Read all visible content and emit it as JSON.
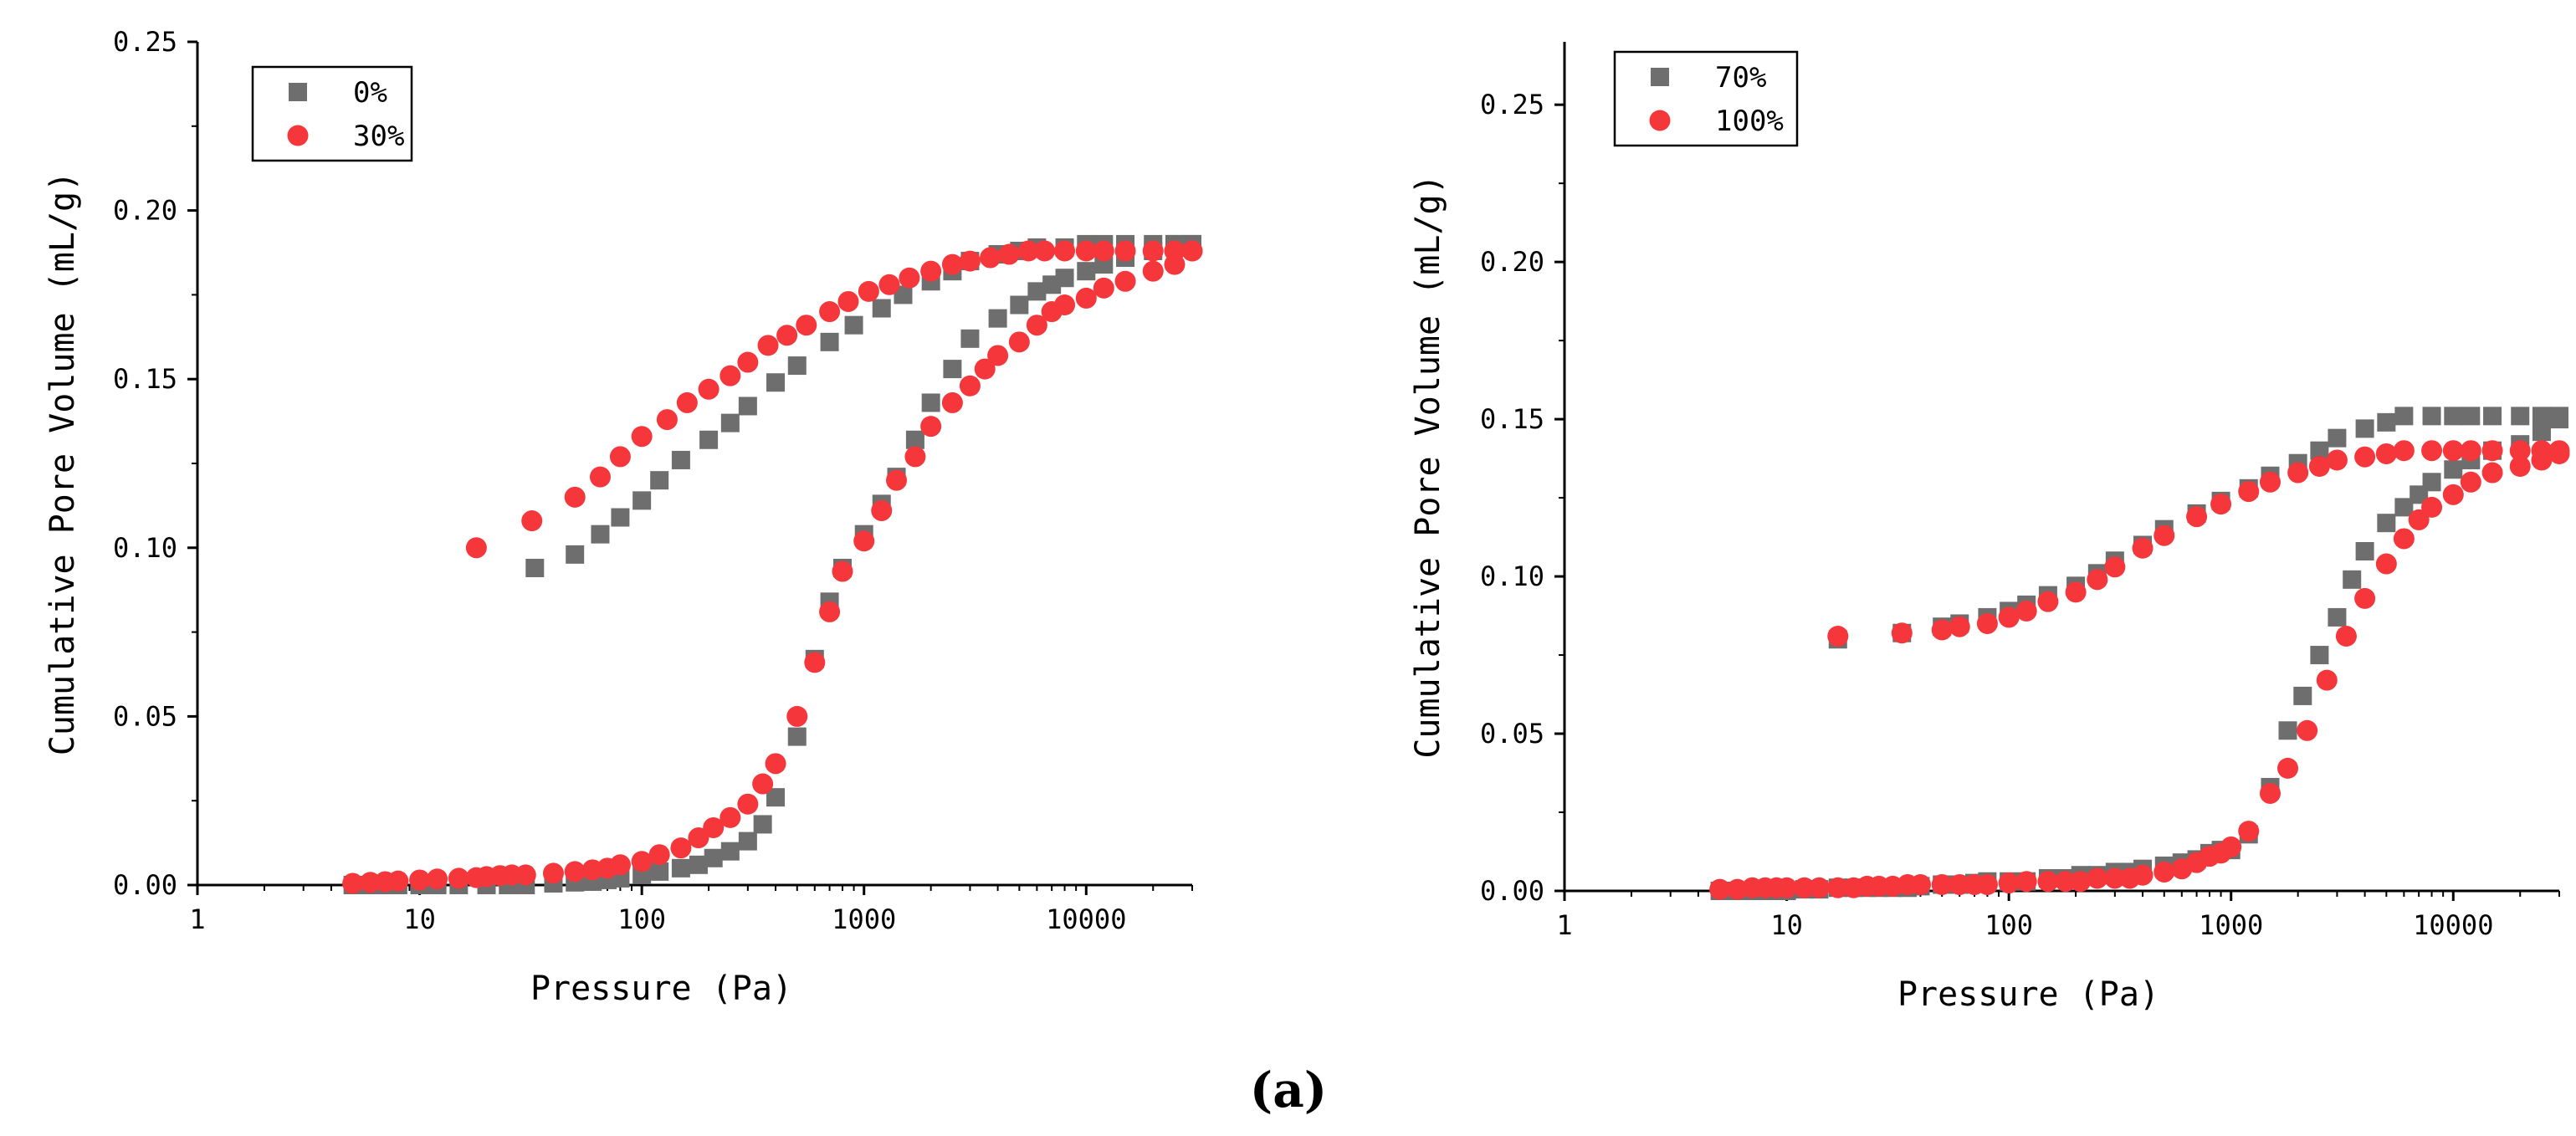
{
  "figure_caption": "(a)",
  "colors": {
    "square": "#6e6e6e",
    "circle": "#f5363b"
  },
  "chart_data": [
    {
      "type": "scatter",
      "xscale": "log",
      "xlim": [
        1,
        30000
      ],
      "ylim": [
        0,
        0.25
      ],
      "xlabel": "Pressure (Pa)",
      "ylabel": "Cumulative Pore Volume (mL/g)",
      "xticks": [
        1,
        10,
        100,
        1000,
        10000
      ],
      "xtick_labels": [
        "1",
        "10",
        "100",
        "1000",
        "10000"
      ],
      "yticks": [
        0,
        0.05,
        0.1,
        0.15,
        0.2,
        0.25
      ],
      "ytick_labels": [
        "0.00",
        "0.05",
        "0.10",
        "0.15",
        "0.20",
        "0.25"
      ],
      "legend_position": "top-left",
      "series": [
        {
          "name": "0%",
          "marker": "square",
          "intrusion": {
            "x": [
              5,
              6,
              7,
              8,
              10,
              12,
              15,
              20,
              25,
              30,
              40,
              50,
              60,
              70,
              80,
              100,
              120,
              150,
              180,
              210,
              250,
              300,
              350,
              400,
              500,
              600,
              700,
              800,
              1000,
              1200,
              1400,
              1700,
              2000,
              2500,
              3000,
              4000,
              5000,
              6000,
              7000,
              8000,
              10000,
              12000,
              15000,
              20000,
              25000,
              30000
            ],
            "y": [
              0.0,
              0.0,
              0.0,
              0.0,
              0.0,
              0.0,
              0.0,
              0.0,
              0.0,
              0.0,
              0.0005,
              0.0008,
              0.001,
              0.0015,
              0.002,
              0.003,
              0.004,
              0.005,
              0.006,
              0.008,
              0.01,
              0.013,
              0.018,
              0.026,
              0.044,
              0.067,
              0.084,
              0.094,
              0.104,
              0.113,
              0.121,
              0.132,
              0.143,
              0.153,
              0.162,
              0.168,
              0.172,
              0.176,
              0.178,
              0.18,
              0.182,
              0.184,
              0.186,
              0.188,
              0.19,
              0.19
            ]
          },
          "extrusion": {
            "x": [
              30000,
              25000,
              20000,
              15000,
              12000,
              10000,
              8000,
              6000,
              5000,
              4000,
              3000,
              2500,
              2000,
              1500,
              1200,
              900,
              700,
              500,
              400,
              300,
              250,
              200,
              150,
              120,
              100,
              80,
              65,
              50,
              33
            ],
            "y": [
              0.19,
              0.19,
              0.19,
              0.19,
              0.19,
              0.19,
              0.189,
              0.189,
              0.188,
              0.187,
              0.185,
              0.182,
              0.179,
              0.175,
              0.171,
              0.166,
              0.161,
              0.154,
              0.149,
              0.142,
              0.137,
              0.132,
              0.126,
              0.12,
              0.114,
              0.109,
              0.104,
              0.098,
              0.094
            ]
          }
        },
        {
          "name": "30%",
          "marker": "circle",
          "intrusion": {
            "x": [
              5,
              6,
              7,
              8,
              10,
              12,
              15,
              18,
              20,
              23,
              26,
              30,
              40,
              50,
              60,
              70,
              80,
              100,
              120,
              150,
              180,
              210,
              250,
              300,
              350,
              400,
              500,
              600,
              700,
              800,
              1000,
              1200,
              1400,
              1700,
              2000,
              2500,
              3000,
              3500,
              4000,
              5000,
              6000,
              7000,
              8000,
              10000,
              12000,
              15000,
              20000,
              25000,
              30000
            ],
            "y": [
              0.0005,
              0.0008,
              0.001,
              0.0012,
              0.0015,
              0.0018,
              0.002,
              0.0022,
              0.0025,
              0.0028,
              0.003,
              0.003,
              0.0035,
              0.004,
              0.0045,
              0.005,
              0.006,
              0.007,
              0.009,
              0.011,
              0.014,
              0.017,
              0.02,
              0.024,
              0.03,
              0.036,
              0.05,
              0.066,
              0.081,
              0.093,
              0.102,
              0.111,
              0.12,
              0.127,
              0.136,
              0.143,
              0.148,
              0.153,
              0.157,
              0.161,
              0.166,
              0.17,
              0.172,
              0.174,
              0.177,
              0.179,
              0.182,
              0.184,
              0.188
            ]
          },
          "extrusion": {
            "x": [
              30000,
              25000,
              20000,
              15000,
              12000,
              10000,
              8000,
              6500,
              5500,
              4500,
              3700,
              3000,
              2500,
              2000,
              1600,
              1300,
              1050,
              850,
              700,
              550,
              450,
              370,
              300,
              250,
              200,
              160,
              130,
              100,
              80,
              65,
              50,
              32,
              18
            ],
            "y": [
              0.188,
              0.188,
              0.188,
              0.188,
              0.188,
              0.188,
              0.188,
              0.188,
              0.188,
              0.187,
              0.186,
              0.185,
              0.184,
              0.182,
              0.18,
              0.178,
              0.176,
              0.173,
              0.17,
              0.166,
              0.163,
              0.16,
              0.155,
              0.151,
              0.147,
              0.143,
              0.138,
              0.133,
              0.127,
              0.121,
              0.115,
              0.108,
              0.1
            ]
          }
        }
      ]
    },
    {
      "type": "scatter",
      "xscale": "log",
      "xlim": [
        1,
        30000
      ],
      "ylim": [
        0,
        0.27
      ],
      "xlabel": "Pressure (Pa)",
      "ylabel": "Cumulative Pore Volume (mL/g)",
      "xticks": [
        1,
        10,
        100,
        1000,
        10000
      ],
      "xtick_labels": [
        "1",
        "10",
        "100",
        "1000",
        "10000"
      ],
      "yticks": [
        0,
        0.05,
        0.1,
        0.15,
        0.2,
        0.25
      ],
      "ytick_labels": [
        "0.00",
        "0.05",
        "0.10",
        "0.15",
        "0.20",
        "0.25"
      ],
      "legend_position": "top-left",
      "series": [
        {
          "name": "70%",
          "marker": "square",
          "intrusion": {
            "x": [
              5,
              6,
              7,
              8,
              9,
              10,
              12,
              14,
              17,
              20,
              23,
              26,
              30,
              35,
              40,
              50,
              60,
              70,
              80,
              100,
              120,
              150,
              180,
              210,
              250,
              300,
              350,
              400,
              500,
              600,
              700,
              800,
              900,
              1000,
              1200,
              1500,
              1800,
              2100,
              2500,
              3000,
              3500,
              4000,
              5000,
              6000,
              7000,
              8000,
              10000,
              12000,
              15000,
              20000,
              25000,
              30000
            ],
            "y": [
              0.0,
              0.0,
              0.0,
              0.0,
              0.0,
              0.0,
              0.0005,
              0.0005,
              0.001,
              0.001,
              0.001,
              0.001,
              0.001,
              0.001,
              0.0015,
              0.002,
              0.002,
              0.0025,
              0.003,
              0.003,
              0.003,
              0.004,
              0.004,
              0.005,
              0.005,
              0.006,
              0.006,
              0.007,
              0.008,
              0.009,
              0.01,
              0.012,
              0.013,
              0.013,
              0.018,
              0.033,
              0.051,
              0.062,
              0.075,
              0.087,
              0.099,
              0.108,
              0.117,
              0.122,
              0.126,
              0.13,
              0.134,
              0.137,
              0.14,
              0.142,
              0.146,
              0.15
            ]
          },
          "extrusion": {
            "x": [
              30000,
              25000,
              20000,
              15000,
              12000,
              10000,
              8000,
              6000,
              5000,
              4000,
              3000,
              2500,
              2000,
              1500,
              1200,
              900,
              700,
              500,
              400,
              300,
              250,
              200,
              150,
              120,
              100,
              80,
              60,
              50,
              33,
              17
            ],
            "y": [
              0.151,
              0.151,
              0.151,
              0.151,
              0.151,
              0.151,
              0.151,
              0.151,
              0.149,
              0.147,
              0.144,
              0.14,
              0.136,
              0.132,
              0.128,
              0.124,
              0.12,
              0.115,
              0.11,
              0.105,
              0.101,
              0.097,
              0.094,
              0.091,
              0.089,
              0.087,
              0.085,
              0.084,
              0.082,
              0.08
            ]
          }
        },
        {
          "name": "100%",
          "marker": "circle",
          "intrusion": {
            "x": [
              5,
              6,
              7,
              8,
              9,
              10,
              12,
              14,
              17,
              20,
              23,
              26,
              30,
              35,
              40,
              50,
              60,
              70,
              80,
              100,
              120,
              150,
              180,
              210,
              250,
              300,
              350,
              400,
              500,
              600,
              700,
              800,
              900,
              1000,
              1200,
              1500,
              1800,
              2200,
              2700,
              3300,
              4000,
              5000,
              6000,
              7000,
              8000,
              10000,
              12000,
              15000,
              20000,
              25000,
              30000
            ],
            "y": [
              0.0005,
              0.0005,
              0.001,
              0.001,
              0.001,
              0.001,
              0.001,
              0.001,
              0.001,
              0.001,
              0.0015,
              0.0015,
              0.0015,
              0.002,
              0.002,
              0.002,
              0.002,
              0.002,
              0.002,
              0.0025,
              0.003,
              0.003,
              0.003,
              0.003,
              0.004,
              0.004,
              0.004,
              0.005,
              0.006,
              0.007,
              0.009,
              0.011,
              0.012,
              0.014,
              0.019,
              0.031,
              0.039,
              0.051,
              0.067,
              0.081,
              0.093,
              0.104,
              0.112,
              0.118,
              0.122,
              0.126,
              0.13,
              0.133,
              0.135,
              0.137,
              0.139
            ]
          },
          "extrusion": {
            "x": [
              30000,
              25000,
              20000,
              15000,
              12000,
              10000,
              8000,
              6000,
              5000,
              4000,
              3000,
              2500,
              2000,
              1500,
              1200,
              900,
              700,
              500,
              400,
              300,
              250,
              200,
              150,
              120,
              100,
              80,
              60,
              50,
              33,
              17
            ],
            "y": [
              0.14,
              0.14,
              0.14,
              0.14,
              0.14,
              0.14,
              0.14,
              0.14,
              0.139,
              0.138,
              0.137,
              0.135,
              0.133,
              0.13,
              0.127,
              0.123,
              0.119,
              0.113,
              0.109,
              0.103,
              0.099,
              0.095,
              0.092,
              0.089,
              0.087,
              0.085,
              0.084,
              0.083,
              0.082,
              0.081
            ]
          }
        }
      ]
    }
  ]
}
